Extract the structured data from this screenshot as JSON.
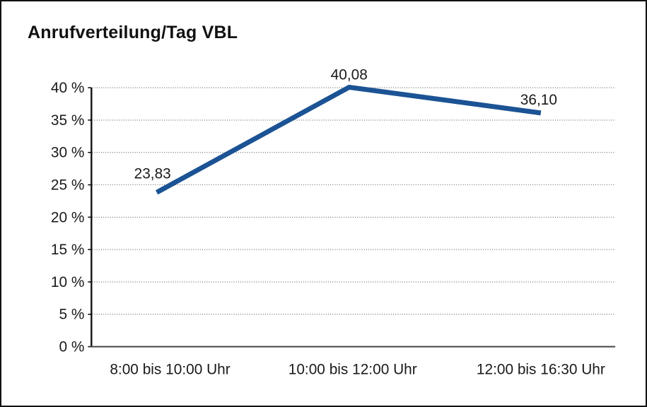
{
  "chart_data": {
    "type": "line",
    "title": "Anrufverteilung/Tag VBL",
    "categories": [
      "8:00 bis 10:00 Uhr",
      "10:00 bis 12:00 Uhr",
      "12:00 bis 16:30 Uhr"
    ],
    "series": [
      {
        "name": "Anrufverteilung",
        "values": [
          23.83,
          40.08,
          36.1
        ],
        "point_labels": [
          "23,83",
          "40,08",
          "36,10"
        ]
      }
    ],
    "xlabel": "",
    "ylabel": "",
    "ylim": [
      0,
      40
    ],
    "ytick_step": 5,
    "ytick_labels": [
      "0 %",
      "5 %",
      "10 %",
      "15 %",
      "20 %",
      "25 %",
      "30 %",
      "35 %",
      "40 %"
    ],
    "grid": "horizontal-dotted",
    "legend_position": "none"
  },
  "colors": {
    "line": "#1B5394",
    "grid": "#4d4d4d",
    "x_axis": "#444444",
    "y_axis": "#111111",
    "text": "#1a1a1a",
    "background": "#ffffff",
    "border": "#111111"
  }
}
